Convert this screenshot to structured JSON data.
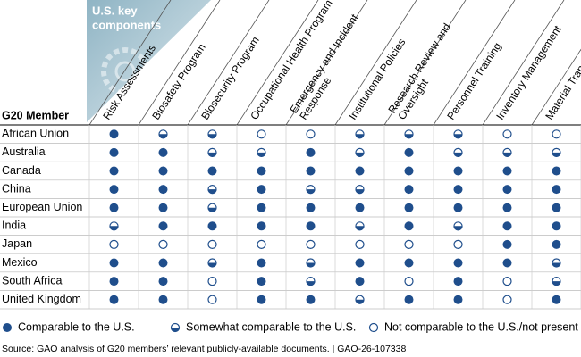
{
  "corner_label": [
    "U.S. key",
    "components"
  ],
  "row_header": "G20 Member",
  "columns": [
    [
      "Risk Assessments"
    ],
    [
      "Biosafety Program"
    ],
    [
      "Biosecurity Program"
    ],
    [
      "Occupational Health Program"
    ],
    [
      "Emergency and Incident",
      "Response"
    ],
    [
      "Institutional Policies"
    ],
    [
      "Research Review and",
      "Oversight"
    ],
    [
      "Personnel Training"
    ],
    [
      "Inventory Management"
    ],
    [
      "Material Transport"
    ]
  ],
  "rows": [
    {
      "member": "African Union",
      "ratings": [
        0,
        1,
        1,
        2,
        2,
        1,
        1,
        1,
        2,
        2
      ]
    },
    {
      "member": "Australia",
      "ratings": [
        0,
        0,
        1,
        1,
        0,
        1,
        0,
        1,
        1,
        1
      ]
    },
    {
      "member": "Canada",
      "ratings": [
        0,
        0,
        0,
        0,
        0,
        0,
        0,
        0,
        0,
        0
      ]
    },
    {
      "member": "China",
      "ratings": [
        0,
        0,
        1,
        0,
        1,
        1,
        0,
        0,
        0,
        0
      ]
    },
    {
      "member": "European Union",
      "ratings": [
        0,
        0,
        1,
        0,
        0,
        0,
        0,
        0,
        0,
        0
      ]
    },
    {
      "member": "India",
      "ratings": [
        1,
        0,
        0,
        0,
        0,
        1,
        0,
        1,
        0,
        0
      ]
    },
    {
      "member": "Japan",
      "ratings": [
        2,
        2,
        2,
        2,
        2,
        2,
        2,
        2,
        0,
        0
      ]
    },
    {
      "member": "Mexico",
      "ratings": [
        0,
        0,
        1,
        0,
        1,
        0,
        0,
        0,
        0,
        1
      ]
    },
    {
      "member": "South Africa",
      "ratings": [
        0,
        0,
        2,
        0,
        1,
        0,
        2,
        0,
        2,
        1
      ]
    },
    {
      "member": "United Kingdom",
      "ratings": [
        0,
        0,
        2,
        0,
        0,
        1,
        0,
        0,
        2,
        0
      ]
    }
  ],
  "legend": [
    "Comparable to the U.S.",
    "Somewhat comparable to the U.S.",
    "Not comparable to the U.S./not present"
  ],
  "source": "Source: GAO analysis of G20 members’ relevant publicly-available documents.  |  GAO-26-107338"
}
